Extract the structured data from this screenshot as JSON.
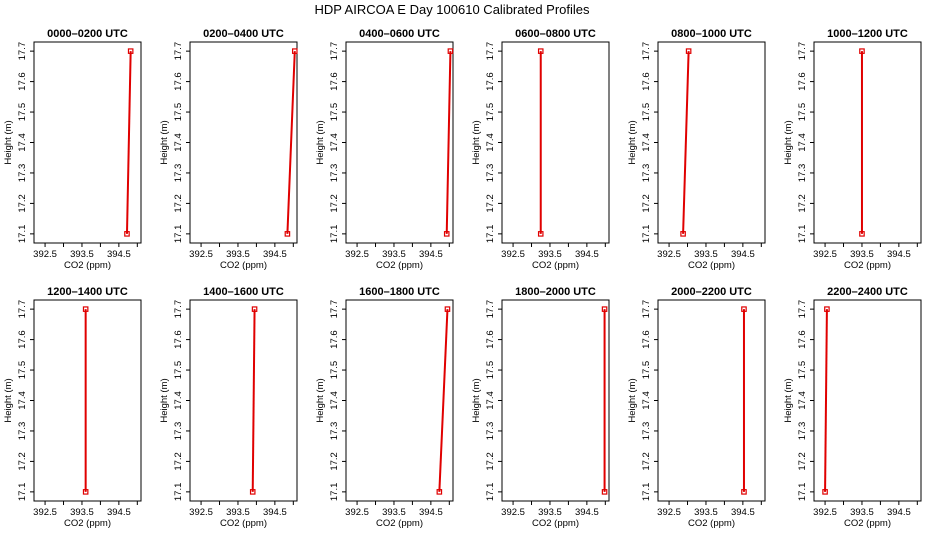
{
  "title": "HDP AIRCOA E  Day 100610  Calibrated Profiles",
  "colors": {
    "series": "#e00000",
    "axes": "#000000"
  },
  "chart_data": [
    {
      "type": "line",
      "title": "0000–0200 UTC",
      "xlabel": "CO2 (ppm)",
      "ylabel": "Height (m)",
      "xlim": [
        392.2,
        395.1
      ],
      "ylim": [
        17.07,
        17.73
      ],
      "xticks": [
        "392.5",
        "393.5",
        "394.5"
      ],
      "yticks": [
        "17.1",
        "17.2",
        "17.3",
        "17.4",
        "17.5",
        "17.6",
        "17.7"
      ],
      "series": [
        {
          "x": [
            394.72,
            394.82
          ],
          "y": [
            17.1,
            17.7
          ]
        }
      ]
    },
    {
      "type": "line",
      "title": "0200–0400 UTC",
      "xlabel": "CO2 (ppm)",
      "ylabel": "Height (m)",
      "xlim": [
        392.2,
        395.1
      ],
      "ylim": [
        17.07,
        17.73
      ],
      "xticks": [
        "392.5",
        "393.5",
        "394.5"
      ],
      "yticks": [
        "17.1",
        "17.2",
        "17.3",
        "17.4",
        "17.5",
        "17.6",
        "17.7"
      ],
      "series": [
        {
          "x": [
            394.84,
            395.04
          ],
          "y": [
            17.1,
            17.7
          ]
        }
      ]
    },
    {
      "type": "line",
      "title": "0400–0600 UTC",
      "xlabel": "CO2 (ppm)",
      "ylabel": "Height (m)",
      "xlim": [
        392.2,
        395.1
      ],
      "ylim": [
        17.07,
        17.73
      ],
      "xticks": [
        "392.5",
        "393.5",
        "394.5"
      ],
      "yticks": [
        "17.1",
        "17.2",
        "17.3",
        "17.4",
        "17.5",
        "17.6",
        "17.7"
      ],
      "series": [
        {
          "x": [
            394.93,
            395.03
          ],
          "y": [
            17.1,
            17.7
          ]
        }
      ]
    },
    {
      "type": "line",
      "title": "0600–0800 UTC",
      "xlabel": "CO2 (ppm)",
      "ylabel": "Height (m)",
      "xlim": [
        392.2,
        395.1
      ],
      "ylim": [
        17.07,
        17.73
      ],
      "xticks": [
        "392.5",
        "393.5",
        "394.5"
      ],
      "yticks": [
        "17.1",
        "17.2",
        "17.3",
        "17.4",
        "17.5",
        "17.6",
        "17.7"
      ],
      "series": [
        {
          "x": [
            393.25,
            393.25
          ],
          "y": [
            17.1,
            17.7
          ]
        }
      ]
    },
    {
      "type": "line",
      "title": "0800–1000 UTC",
      "xlabel": "CO2 (ppm)",
      "ylabel": "Height (m)",
      "xlim": [
        392.2,
        395.1
      ],
      "ylim": [
        17.07,
        17.73
      ],
      "xticks": [
        "392.5",
        "393.5",
        "394.5"
      ],
      "yticks": [
        "17.1",
        "17.2",
        "17.3",
        "17.4",
        "17.5",
        "17.6",
        "17.7"
      ],
      "series": [
        {
          "x": [
            392.88,
            393.03
          ],
          "y": [
            17.1,
            17.7
          ]
        }
      ]
    },
    {
      "type": "line",
      "title": "1000–1200 UTC",
      "xlabel": "CO2 (ppm)",
      "ylabel": "Height (m)",
      "xlim": [
        392.2,
        395.1
      ],
      "ylim": [
        17.07,
        17.73
      ],
      "xticks": [
        "392.5",
        "393.5",
        "394.5"
      ],
      "yticks": [
        "17.1",
        "17.2",
        "17.3",
        "17.4",
        "17.5",
        "17.6",
        "17.7"
      ],
      "series": [
        {
          "x": [
            393.5,
            393.5
          ],
          "y": [
            17.1,
            17.7
          ]
        }
      ]
    },
    {
      "type": "line",
      "title": "1200–1400 UTC",
      "xlabel": "CO2 (ppm)",
      "ylabel": "Height (m)",
      "xlim": [
        392.2,
        395.1
      ],
      "ylim": [
        17.07,
        17.73
      ],
      "xticks": [
        "392.5",
        "393.5",
        "394.5"
      ],
      "yticks": [
        "17.1",
        "17.2",
        "17.3",
        "17.4",
        "17.5",
        "17.6",
        "17.7"
      ],
      "series": [
        {
          "x": [
            393.6,
            393.6
          ],
          "y": [
            17.1,
            17.7
          ]
        }
      ]
    },
    {
      "type": "line",
      "title": "1400–1600 UTC",
      "xlabel": "CO2 (ppm)",
      "ylabel": "Height (m)",
      "xlim": [
        392.2,
        395.1
      ],
      "ylim": [
        17.07,
        17.73
      ],
      "xticks": [
        "392.5",
        "393.5",
        "394.5"
      ],
      "yticks": [
        "17.1",
        "17.2",
        "17.3",
        "17.4",
        "17.5",
        "17.6",
        "17.7"
      ],
      "series": [
        {
          "x": [
            393.9,
            393.95
          ],
          "y": [
            17.1,
            17.7
          ]
        }
      ]
    },
    {
      "type": "line",
      "title": "1600–1800 UTC",
      "xlabel": "CO2 (ppm)",
      "ylabel": "Height (m)",
      "xlim": [
        392.2,
        395.1
      ],
      "ylim": [
        17.07,
        17.73
      ],
      "xticks": [
        "392.5",
        "393.5",
        "394.5"
      ],
      "yticks": [
        "17.1",
        "17.2",
        "17.3",
        "17.4",
        "17.5",
        "17.6",
        "17.7"
      ],
      "series": [
        {
          "x": [
            394.73,
            394.95
          ],
          "y": [
            17.1,
            17.7
          ]
        }
      ]
    },
    {
      "type": "line",
      "title": "1800–2000 UTC",
      "xlabel": "CO2 (ppm)",
      "ylabel": "Height (m)",
      "xlim": [
        392.2,
        395.1
      ],
      "ylim": [
        17.07,
        17.73
      ],
      "xticks": [
        "392.5",
        "393.5",
        "394.5"
      ],
      "yticks": [
        "17.1",
        "17.2",
        "17.3",
        "17.4",
        "17.5",
        "17.6",
        "17.7"
      ],
      "series": [
        {
          "x": [
            394.98,
            394.98
          ],
          "y": [
            17.1,
            17.7
          ]
        }
      ]
    },
    {
      "type": "line",
      "title": "2000–2200 UTC",
      "xlabel": "CO2 (ppm)",
      "ylabel": "Height (m)",
      "xlim": [
        392.2,
        395.1
      ],
      "ylim": [
        17.07,
        17.73
      ],
      "xticks": [
        "392.5",
        "393.5",
        "394.5"
      ],
      "yticks": [
        "17.1",
        "17.2",
        "17.3",
        "17.4",
        "17.5",
        "17.6",
        "17.7"
      ],
      "series": [
        {
          "x": [
            394.53,
            394.53
          ],
          "y": [
            17.1,
            17.7
          ]
        }
      ]
    },
    {
      "type": "line",
      "title": "2200–2400 UTC",
      "xlabel": "CO2 (ppm)",
      "ylabel": "Height (m)",
      "xlim": [
        392.2,
        395.1
      ],
      "ylim": [
        17.07,
        17.73
      ],
      "xticks": [
        "392.5",
        "393.5",
        "394.5"
      ],
      "yticks": [
        "17.1",
        "17.2",
        "17.3",
        "17.4",
        "17.5",
        "17.6",
        "17.7"
      ],
      "series": [
        {
          "x": [
            392.5,
            392.55
          ],
          "y": [
            17.1,
            17.7
          ]
        }
      ]
    }
  ]
}
